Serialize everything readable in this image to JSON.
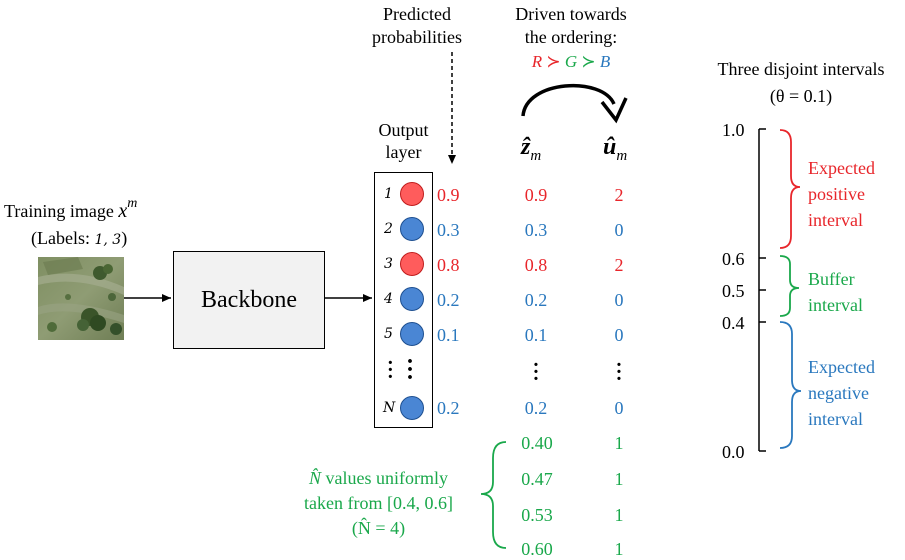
{
  "input": {
    "title_prefix": "Training image ",
    "title_var": "x",
    "title_sup": "m",
    "labels_prefix": "(Labels: ",
    "labels_values": "1, 3",
    "labels_suffix": ")"
  },
  "backbone": {
    "label": "Backbone"
  },
  "output_layer": {
    "label_line1": "Output",
    "label_line2": "layer",
    "nodes": [
      {
        "index": "1",
        "color": "red",
        "prob": "0.9"
      },
      {
        "index": "2",
        "color": "blue",
        "prob": "0.3"
      },
      {
        "index": "3",
        "color": "red",
        "prob": "0.8"
      },
      {
        "index": "4",
        "color": "blue",
        "prob": "0.2"
      },
      {
        "index": "5",
        "color": "blue",
        "prob": "0.1"
      },
      {
        "index": "N",
        "color": "blue",
        "prob": "0.2"
      }
    ]
  },
  "predicted": {
    "line1": "Predicted",
    "line2": "probabilities"
  },
  "driven": {
    "line1": "Driven towards",
    "line2": "the ordering:",
    "order_r": "R",
    "order_g": "G",
    "order_b": "B",
    "succ": "≻"
  },
  "z_col": {
    "header": "ẑ",
    "sub": "m",
    "values": [
      "0.9",
      "0.3",
      "0.8",
      "0.2",
      "0.1",
      "0.2"
    ],
    "extra": [
      "0.40",
      "0.47",
      "0.53",
      "0.60"
    ]
  },
  "u_col": {
    "header": "û",
    "sub": "m",
    "values": [
      "2",
      "0",
      "2",
      "0",
      "0",
      "0"
    ],
    "extra": [
      "1",
      "1",
      "1",
      "1"
    ]
  },
  "uniform_note": {
    "n_symbol": "N̂",
    "line1_rest": " values uniformly",
    "line2": "taken from [0.4, 0.6]",
    "line3": "(N̂ = 4)"
  },
  "intervals": {
    "title": "Three disjoint intervals",
    "theta": "(θ = 0.1)",
    "ticks": [
      "1.0",
      "0.6",
      "0.5",
      "0.4",
      "0.0"
    ],
    "positive": [
      "Expected",
      "positive",
      "interval"
    ],
    "buffer": [
      "Buffer",
      "interval"
    ],
    "negative": [
      "Expected",
      "negative",
      "interval"
    ]
  },
  "colors": {
    "red": "#e8262b",
    "blue": "#2a78be",
    "green": "#1aa84b",
    "node_red_fill": "#ff5c5c",
    "node_blue_fill": "#4a86d4"
  }
}
